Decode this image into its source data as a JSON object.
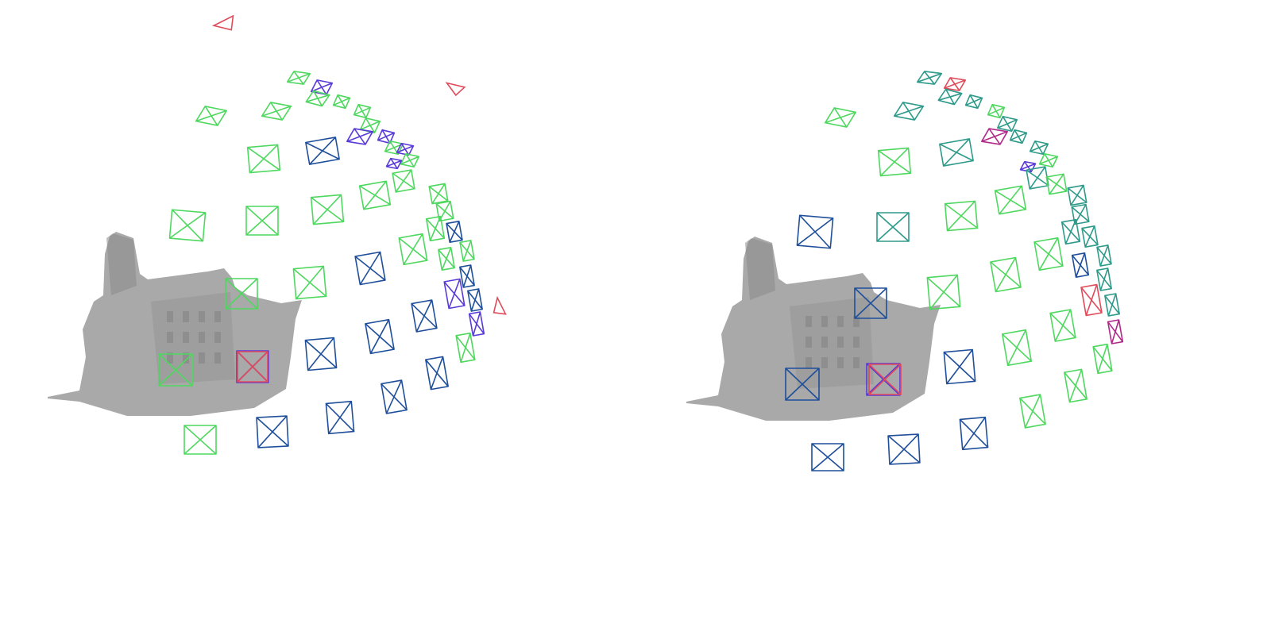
{
  "colors": {
    "background": "#ffffff",
    "mesh": "#a9a9a9",
    "mesh_dark": "#8a8a8a",
    "camera_green": "#4fd85f",
    "camera_blue": "#1f4f9a",
    "camera_teal": "#2e9a8a",
    "camera_purple": "#5a3ad8",
    "camera_red": "#e04a5a",
    "camera_magenta": "#b02a8a"
  },
  "legend": {
    "green": "camera_green",
    "blue": "camera_blue",
    "teal": "camera_teal",
    "purple": "camera_purple",
    "red": "camera_red",
    "magenta": "camera_magenta"
  }
}
